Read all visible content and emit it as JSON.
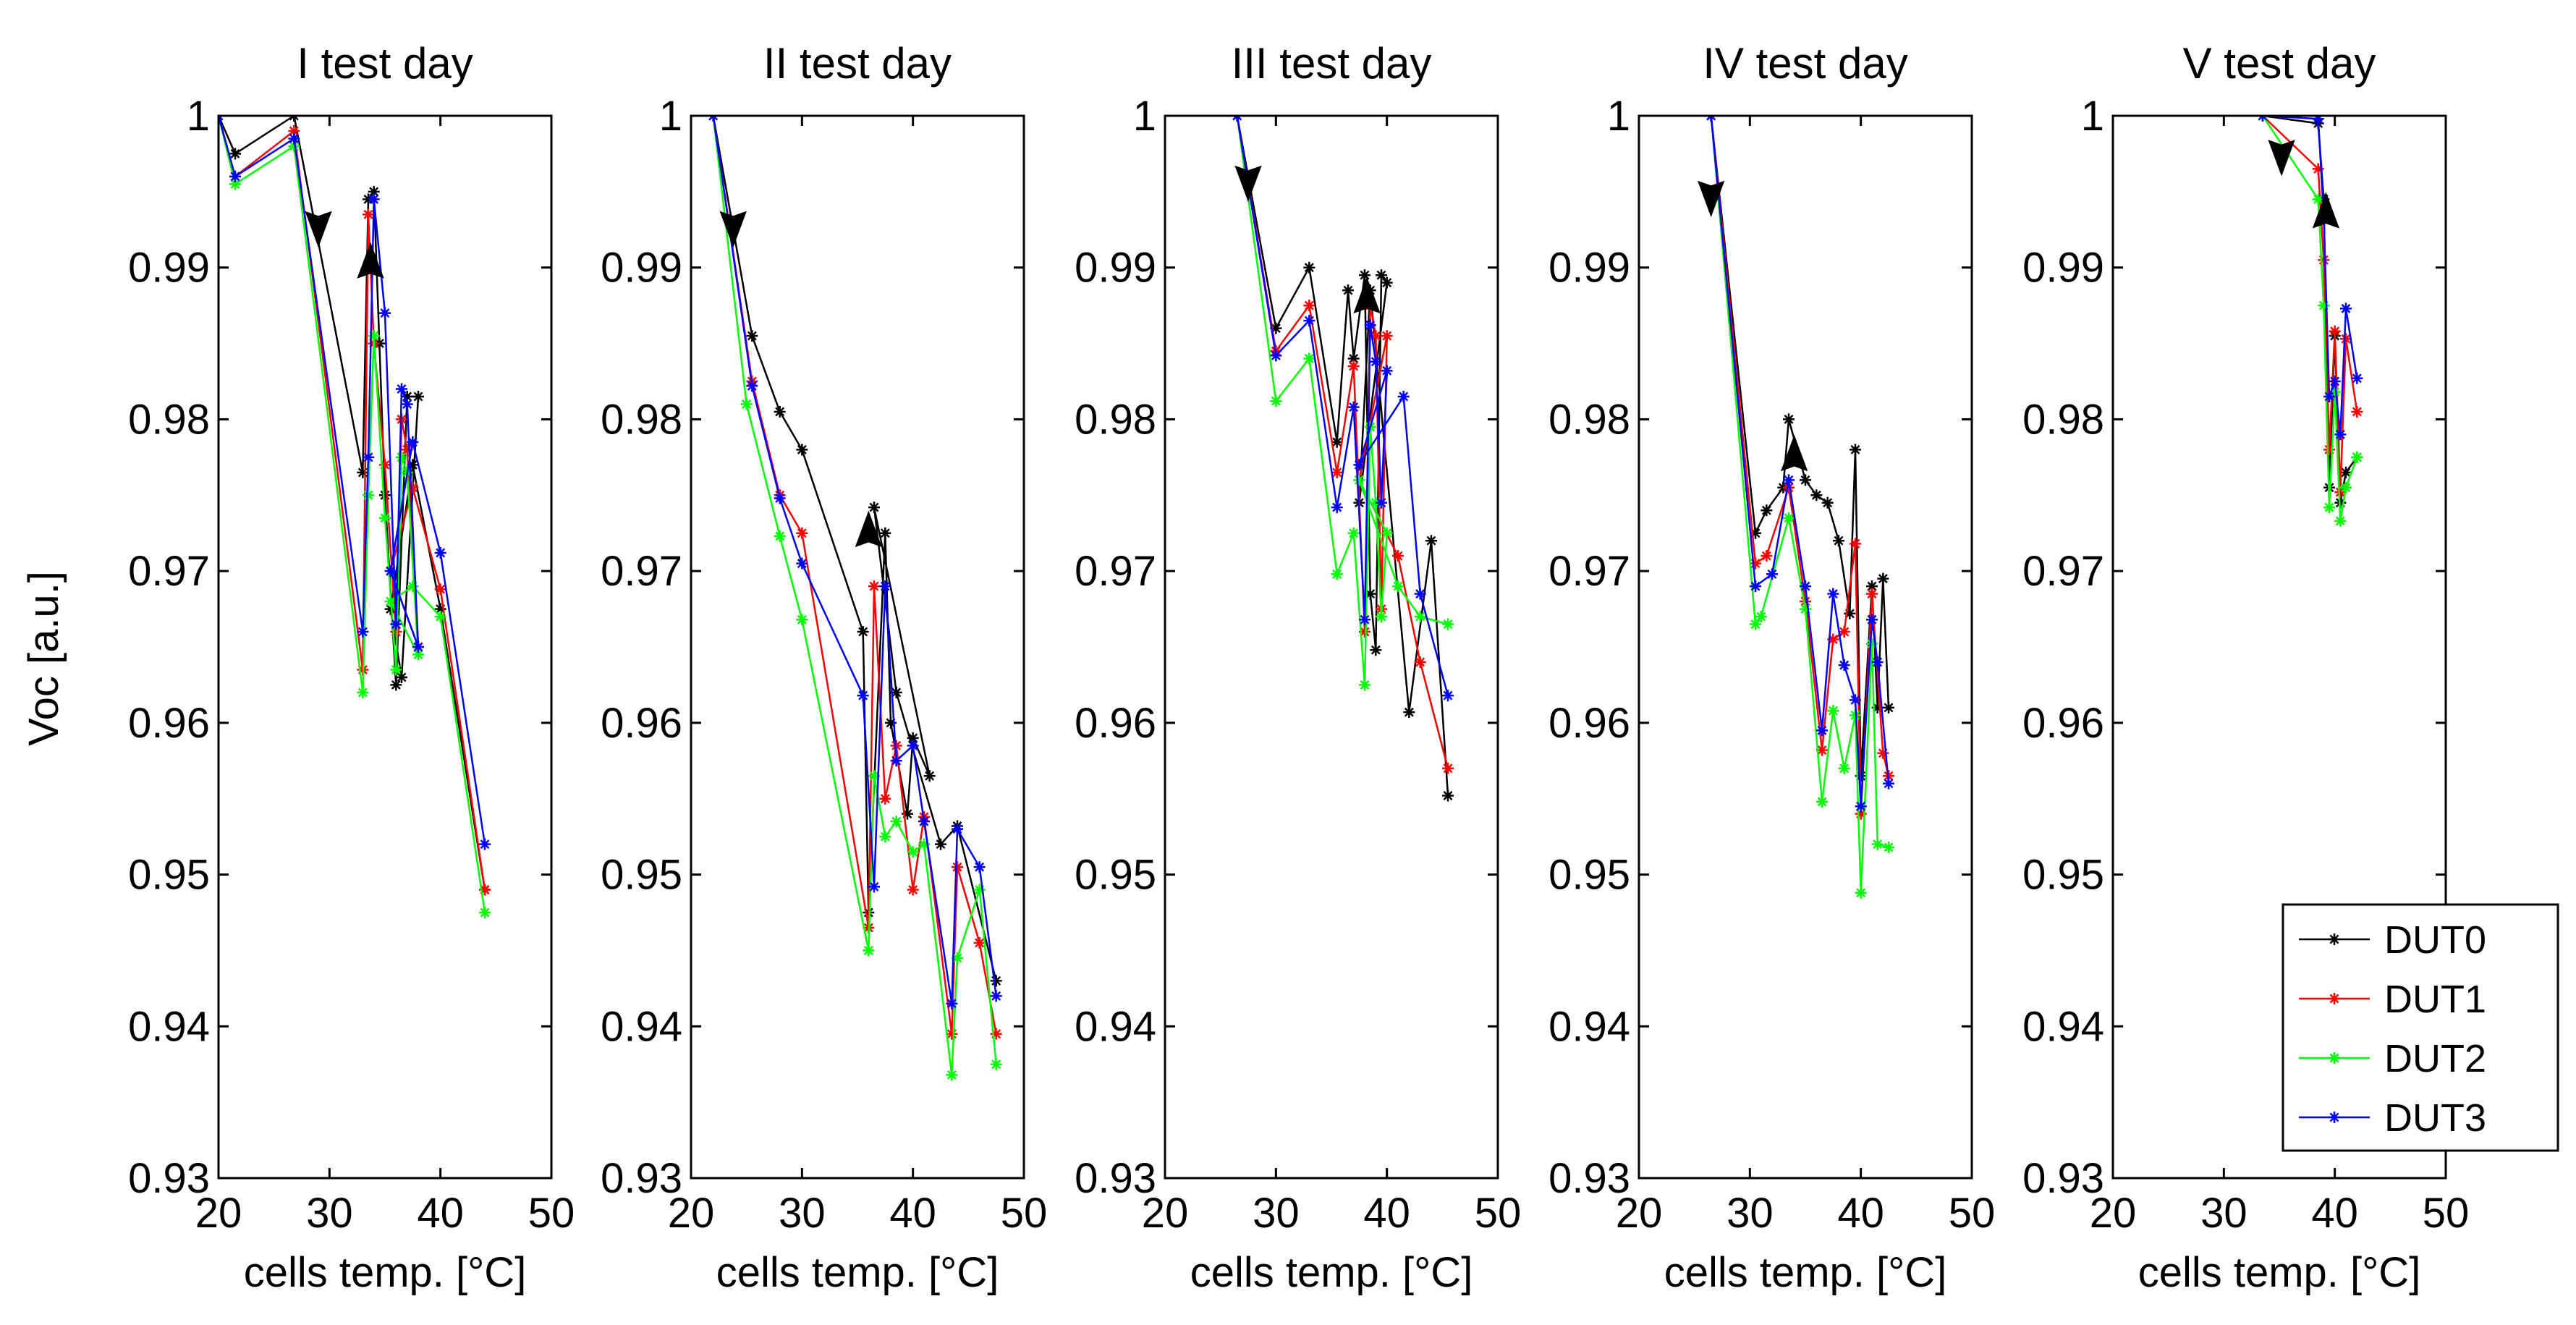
{
  "chart_data": {
    "type": "line",
    "ylabel": "Voc [a.u.]",
    "xlabel": "cells temp. [°C]",
    "ylim": [
      0.93,
      1.0
    ],
    "xlim": [
      20,
      50
    ],
    "yticks": [
      0.93,
      0.94,
      0.95,
      0.96,
      0.97,
      0.98,
      0.99,
      1
    ],
    "yticklabels": [
      "0.93",
      "0.94",
      "0.95",
      "0.96",
      "0.97",
      "0.98",
      "0.99",
      "1"
    ],
    "xticks": [
      20,
      30,
      40,
      50
    ],
    "xticklabels": [
      "20",
      "30",
      "40",
      "50"
    ],
    "legend": {
      "location": "bottom-right",
      "entries": [
        "DUT0",
        "DUT1",
        "DUT2",
        "DUT3"
      ]
    },
    "colors": {
      "DUT0": "#000000",
      "DUT1": "#ff0000",
      "DUT2": "#00ff00",
      "DUT3": "#0000ff"
    },
    "panels": [
      {
        "title": "I test day",
        "arrows": [
          {
            "x": 29,
            "y": 0.9925,
            "direction": "down"
          },
          {
            "x": 33.7,
            "y": 0.9905,
            "direction": "up"
          }
        ],
        "series": [
          {
            "name": "DUT0",
            "x": [
              20,
              21.5,
              26.8,
              33,
              33.5,
              34,
              34.5,
              35,
              36,
              37,
              38,
              36.5,
              35.5,
              37.5,
              40,
              44
            ],
            "y": [
              1,
              0.9975,
              1,
              0.9765,
              0.9945,
              0.995,
              0.985,
              0.975,
              0.9625,
              0.9815,
              0.9815,
              0.963,
              0.9675,
              0.977,
              0.9675,
              0.949
            ]
          },
          {
            "name": "DUT1",
            "x": [
              20,
              21.5,
              26.8,
              33,
              33.5,
              34,
              35,
              36,
              36.5,
              37,
              38,
              35.5,
              37.5,
              40,
              44
            ],
            "y": [
              1,
              0.996,
              0.999,
              0.9635,
              0.9935,
              0.985,
              0.977,
              0.966,
              0.98,
              0.978,
              0.965,
              0.97,
              0.9755,
              0.9688,
              0.949
            ]
          },
          {
            "name": "DUT2",
            "x": [
              20,
              21.5,
              26.8,
              33,
              33.5,
              34,
              35,
              36,
              36.5,
              37,
              38,
              35.5,
              37.5,
              40,
              44
            ],
            "y": [
              1,
              0.9955,
              0.998,
              0.962,
              0.975,
              0.9855,
              0.9735,
              0.9635,
              0.9775,
              0.9765,
              0.9645,
              0.968,
              0.969,
              0.967,
              0.9475
            ]
          },
          {
            "name": "DUT3",
            "x": [
              20,
              21.5,
              26.8,
              33,
              33.5,
              34,
              35,
              36,
              36.5,
              37,
              38,
              35.5,
              37.5,
              40,
              44
            ],
            "y": [
              1,
              0.996,
              0.9985,
              0.966,
              0.9775,
              0.9945,
              0.987,
              0.9665,
              0.982,
              0.981,
              0.965,
              0.97,
              0.9785,
              0.9712,
              0.952
            ]
          }
        ]
      },
      {
        "title": "II test day",
        "arrows": [
          {
            "x": 23.8,
            "y": 0.9925,
            "direction": "down"
          },
          {
            "x": 36,
            "y": 0.9728,
            "direction": "up"
          }
        ],
        "series": [
          {
            "name": "DUT0",
            "x": [
              22,
              25.5,
              28,
              30,
              35.5,
              36,
              37.5,
              38,
              39.5,
              40,
              41.5,
              36.5,
              38.5,
              42.5,
              44,
              47.5
            ],
            "y": [
              1,
              0.9855,
              0.9805,
              0.978,
              0.966,
              0.9475,
              0.9725,
              0.96,
              0.954,
              0.959,
              0.9565,
              0.9742,
              0.962,
              0.952,
              0.9532,
              0.943
            ]
          },
          {
            "name": "DUT1",
            "x": [
              22,
              25.5,
              28,
              30,
              36,
              36.5,
              37.5,
              38.5,
              40,
              41,
              43.5,
              44,
              46,
              47.5
            ],
            "y": [
              1,
              0.9825,
              0.975,
              0.9725,
              0.9465,
              0.969,
              0.955,
              0.9585,
              0.949,
              0.9538,
              0.9395,
              0.9505,
              0.9455,
              0.9395
            ]
          },
          {
            "name": "DUT2",
            "x": [
              22,
              25,
              28,
              30,
              36,
              36.5,
              37.5,
              38.5,
              40,
              41,
              43.5,
              44,
              46,
              47.5
            ],
            "y": [
              1,
              0.981,
              0.9723,
              0.9668,
              0.945,
              0.9565,
              0.9525,
              0.9535,
              0.9515,
              0.952,
              0.9368,
              0.9445,
              0.949,
              0.9375
            ]
          },
          {
            "name": "DUT3",
            "x": [
              22,
              25.5,
              28,
              30,
              35.5,
              36.5,
              37.5,
              38.5,
              40,
              41,
              43.5,
              44,
              46,
              47.5
            ],
            "y": [
              1,
              0.9822,
              0.9748,
              0.9705,
              0.9618,
              0.9492,
              0.969,
              0.9575,
              0.9585,
              0.9535,
              0.9415,
              0.953,
              0.9505,
              0.942
            ]
          }
        ]
      },
      {
        "title": "III test day",
        "arrows": [
          {
            "x": 27.5,
            "y": 0.9955,
            "direction": "down"
          },
          {
            "x": 38.2,
            "y": 0.9882,
            "direction": "up"
          }
        ],
        "series": [
          {
            "name": "DUT0",
            "x": [
              26.5,
              30,
              33,
              35.5,
              36.5,
              37,
              38,
              38.5,
              39,
              39.5,
              40,
              37.5,
              38.5,
              42,
              44,
              45.5
            ],
            "y": [
              1,
              0.986,
              0.99,
              0.9785,
              0.9885,
              0.984,
              0.9895,
              0.9685,
              0.9648,
              0.9895,
              0.989,
              0.9745,
              0.9885,
              0.9607,
              0.972,
              0.9552
            ]
          },
          {
            "name": "DUT1",
            "x": [
              26.5,
              30,
              33,
              35.5,
              37,
              38,
              38.5,
              39,
              39.5,
              40,
              37.5,
              41,
              43,
              45.5
            ],
            "y": [
              1,
              0.9845,
              0.9875,
              0.9765,
              0.9835,
              0.966,
              0.9875,
              0.9855,
              0.9675,
              0.9855,
              0.976,
              0.971,
              0.964,
              0.957
            ]
          },
          {
            "name": "DUT2",
            "x": [
              26.5,
              30,
              33,
              35.5,
              37,
              38,
              38.5,
              39,
              39.5,
              40,
              37.5,
              41,
              43,
              45.5
            ],
            "y": [
              1,
              0.9812,
              0.984,
              0.9698,
              0.9725,
              0.9625,
              0.9795,
              0.9745,
              0.967,
              0.9725,
              0.976,
              0.969,
              0.967,
              0.9665
            ]
          },
          {
            "name": "DUT3",
            "x": [
              26.5,
              30,
              33,
              35.5,
              37,
              38,
              38.5,
              39,
              39.5,
              40,
              37.5,
              41.5,
              43,
              45.5
            ],
            "y": [
              1,
              0.9842,
              0.9865,
              0.9742,
              0.9808,
              0.9668,
              0.9862,
              0.9838,
              0.9745,
              0.9832,
              0.977,
              0.9815,
              0.9685,
              0.9618
            ]
          }
        ]
      },
      {
        "title": "IV test day",
        "arrows": [
          {
            "x": 26.5,
            "y": 0.9945,
            "direction": "down"
          },
          {
            "x": 34,
            "y": 0.9778,
            "direction": "up"
          }
        ],
        "series": [
          {
            "name": "DUT0",
            "x": [
              26.5,
              30.5,
              31.5,
              33,
              33.5,
              35,
              36,
              37,
              38,
              39,
              39.5,
              40,
              41,
              41.5,
              42,
              42.5
            ],
            "y": [
              1,
              0.9725,
              0.974,
              0.9755,
              0.98,
              0.976,
              0.975,
              0.9745,
              0.972,
              0.9672,
              0.978,
              0.9565,
              0.969,
              0.961,
              0.9695,
              0.961
            ]
          },
          {
            "name": "DUT1",
            "x": [
              26.5,
              30.5,
              31.5,
              33.5,
              35,
              36.5,
              37.5,
              38.5,
              39.5,
              40,
              41,
              42,
              42.5
            ],
            "y": [
              1,
              0.9705,
              0.971,
              0.9755,
              0.968,
              0.9582,
              0.9655,
              0.966,
              0.9718,
              0.954,
              0.9685,
              0.958,
              0.9565
            ]
          },
          {
            "name": "DUT2",
            "x": [
              26.5,
              30.5,
              31,
              33.5,
              35,
              36.5,
              37.5,
              38.5,
              39.5,
              40,
              41,
              41.5,
              42.5
            ],
            "y": [
              1,
              0.9665,
              0.967,
              0.9735,
              0.9675,
              0.9548,
              0.9608,
              0.957,
              0.9605,
              0.9488,
              0.9652,
              0.952,
              0.9518
            ]
          },
          {
            "name": "DUT3",
            "x": [
              26.5,
              30.5,
              32,
              33.5,
              35,
              36.5,
              37.5,
              38.5,
              39.5,
              40,
              41,
              41.5,
              42.5
            ],
            "y": [
              1,
              0.969,
              0.9698,
              0.976,
              0.969,
              0.9595,
              0.9685,
              0.9638,
              0.9615,
              0.9545,
              0.9668,
              0.964,
              0.956
            ]
          }
        ]
      },
      {
        "title": "V test day",
        "arrows": [
          {
            "x": 35.2,
            "y": 0.9972,
            "direction": "down"
          },
          {
            "x": 39.2,
            "y": 0.9938,
            "direction": "up"
          }
        ],
        "series": [
          {
            "name": "DUT0",
            "x": [
              33.5,
              38.5,
              39,
              39.5,
              40,
              40.5,
              41,
              42
            ],
            "y": [
              1,
              0.9995,
              0.9945,
              0.9755,
              0.9855,
              0.9745,
              0.9765,
              0.9775
            ]
          },
          {
            "name": "DUT1",
            "x": [
              33.5,
              38.5,
              39,
              39.5,
              40,
              40.5,
              41,
              42
            ],
            "y": [
              1,
              0.9965,
              0.9905,
              0.978,
              0.9858,
              0.9752,
              0.9853,
              0.9805
            ]
          },
          {
            "name": "DUT2",
            "x": [
              33.5,
              38.5,
              39,
              39.5,
              40,
              40.5,
              41,
              42
            ],
            "y": [
              1,
              0.9945,
              0.9875,
              0.9742,
              0.9818,
              0.9733,
              0.9755,
              0.9775
            ]
          },
          {
            "name": "DUT3",
            "x": [
              33.5,
              38.5,
              39,
              39.5,
              40,
              40.5,
              41,
              42
            ],
            "y": [
              1,
              0.9998,
              0.9935,
              0.9815,
              0.9825,
              0.979,
              0.9873,
              0.9827
            ]
          }
        ]
      }
    ]
  }
}
